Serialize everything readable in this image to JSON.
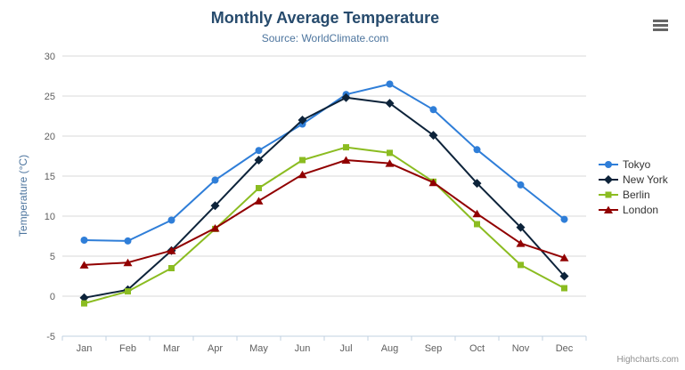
{
  "header": {
    "title": "Monthly Average Temperature",
    "subtitle": "Source: WorldClimate.com"
  },
  "toolbar": {
    "menu_icon": "hamburger-menu-icon"
  },
  "credits": {
    "label": "Highcharts.com"
  },
  "colors": {
    "title": "#274b6d",
    "subtitle": "#4d759e",
    "axis_label": "#606060",
    "axis_title": "#4d759e",
    "gridline": "#d8d8d8",
    "axis_line": "#c0d0e0",
    "legend_text": "#333333",
    "credits_text": "#909090",
    "menu_icon": "#666666"
  },
  "chart_data": {
    "type": "line",
    "title": "Monthly Average Temperature",
    "subtitle": "Source: WorldClimate.com",
    "xlabel": "",
    "ylabel": "Temperature (°C)",
    "categories": [
      "Jan",
      "Feb",
      "Mar",
      "Apr",
      "May",
      "Jun",
      "Jul",
      "Aug",
      "Sep",
      "Oct",
      "Nov",
      "Dec"
    ],
    "ylim": [
      -5,
      30
    ],
    "ytick_interval": 5,
    "grid": true,
    "legend_position": "right",
    "series": [
      {
        "name": "Tokyo",
        "color": "#2f7ed8",
        "marker": "circle",
        "values": [
          7.0,
          6.9,
          9.5,
          14.5,
          18.2,
          21.5,
          25.2,
          26.5,
          23.3,
          18.3,
          13.9,
          9.6
        ]
      },
      {
        "name": "New York",
        "color": "#0d233a",
        "marker": "diamond",
        "values": [
          -0.2,
          0.8,
          5.7,
          11.3,
          17.0,
          22.0,
          24.8,
          24.1,
          20.1,
          14.1,
          8.6,
          2.5
        ]
      },
      {
        "name": "Berlin",
        "color": "#8bbc21",
        "marker": "square",
        "values": [
          -0.9,
          0.6,
          3.5,
          8.4,
          13.5,
          17.0,
          18.6,
          17.9,
          14.3,
          9.0,
          3.9,
          1.0
        ]
      },
      {
        "name": "London",
        "color": "#910000",
        "marker": "triangle",
        "values": [
          3.9,
          4.2,
          5.7,
          8.5,
          11.9,
          15.2,
          17.0,
          16.6,
          14.2,
          10.3,
          6.6,
          4.8
        ]
      }
    ]
  }
}
